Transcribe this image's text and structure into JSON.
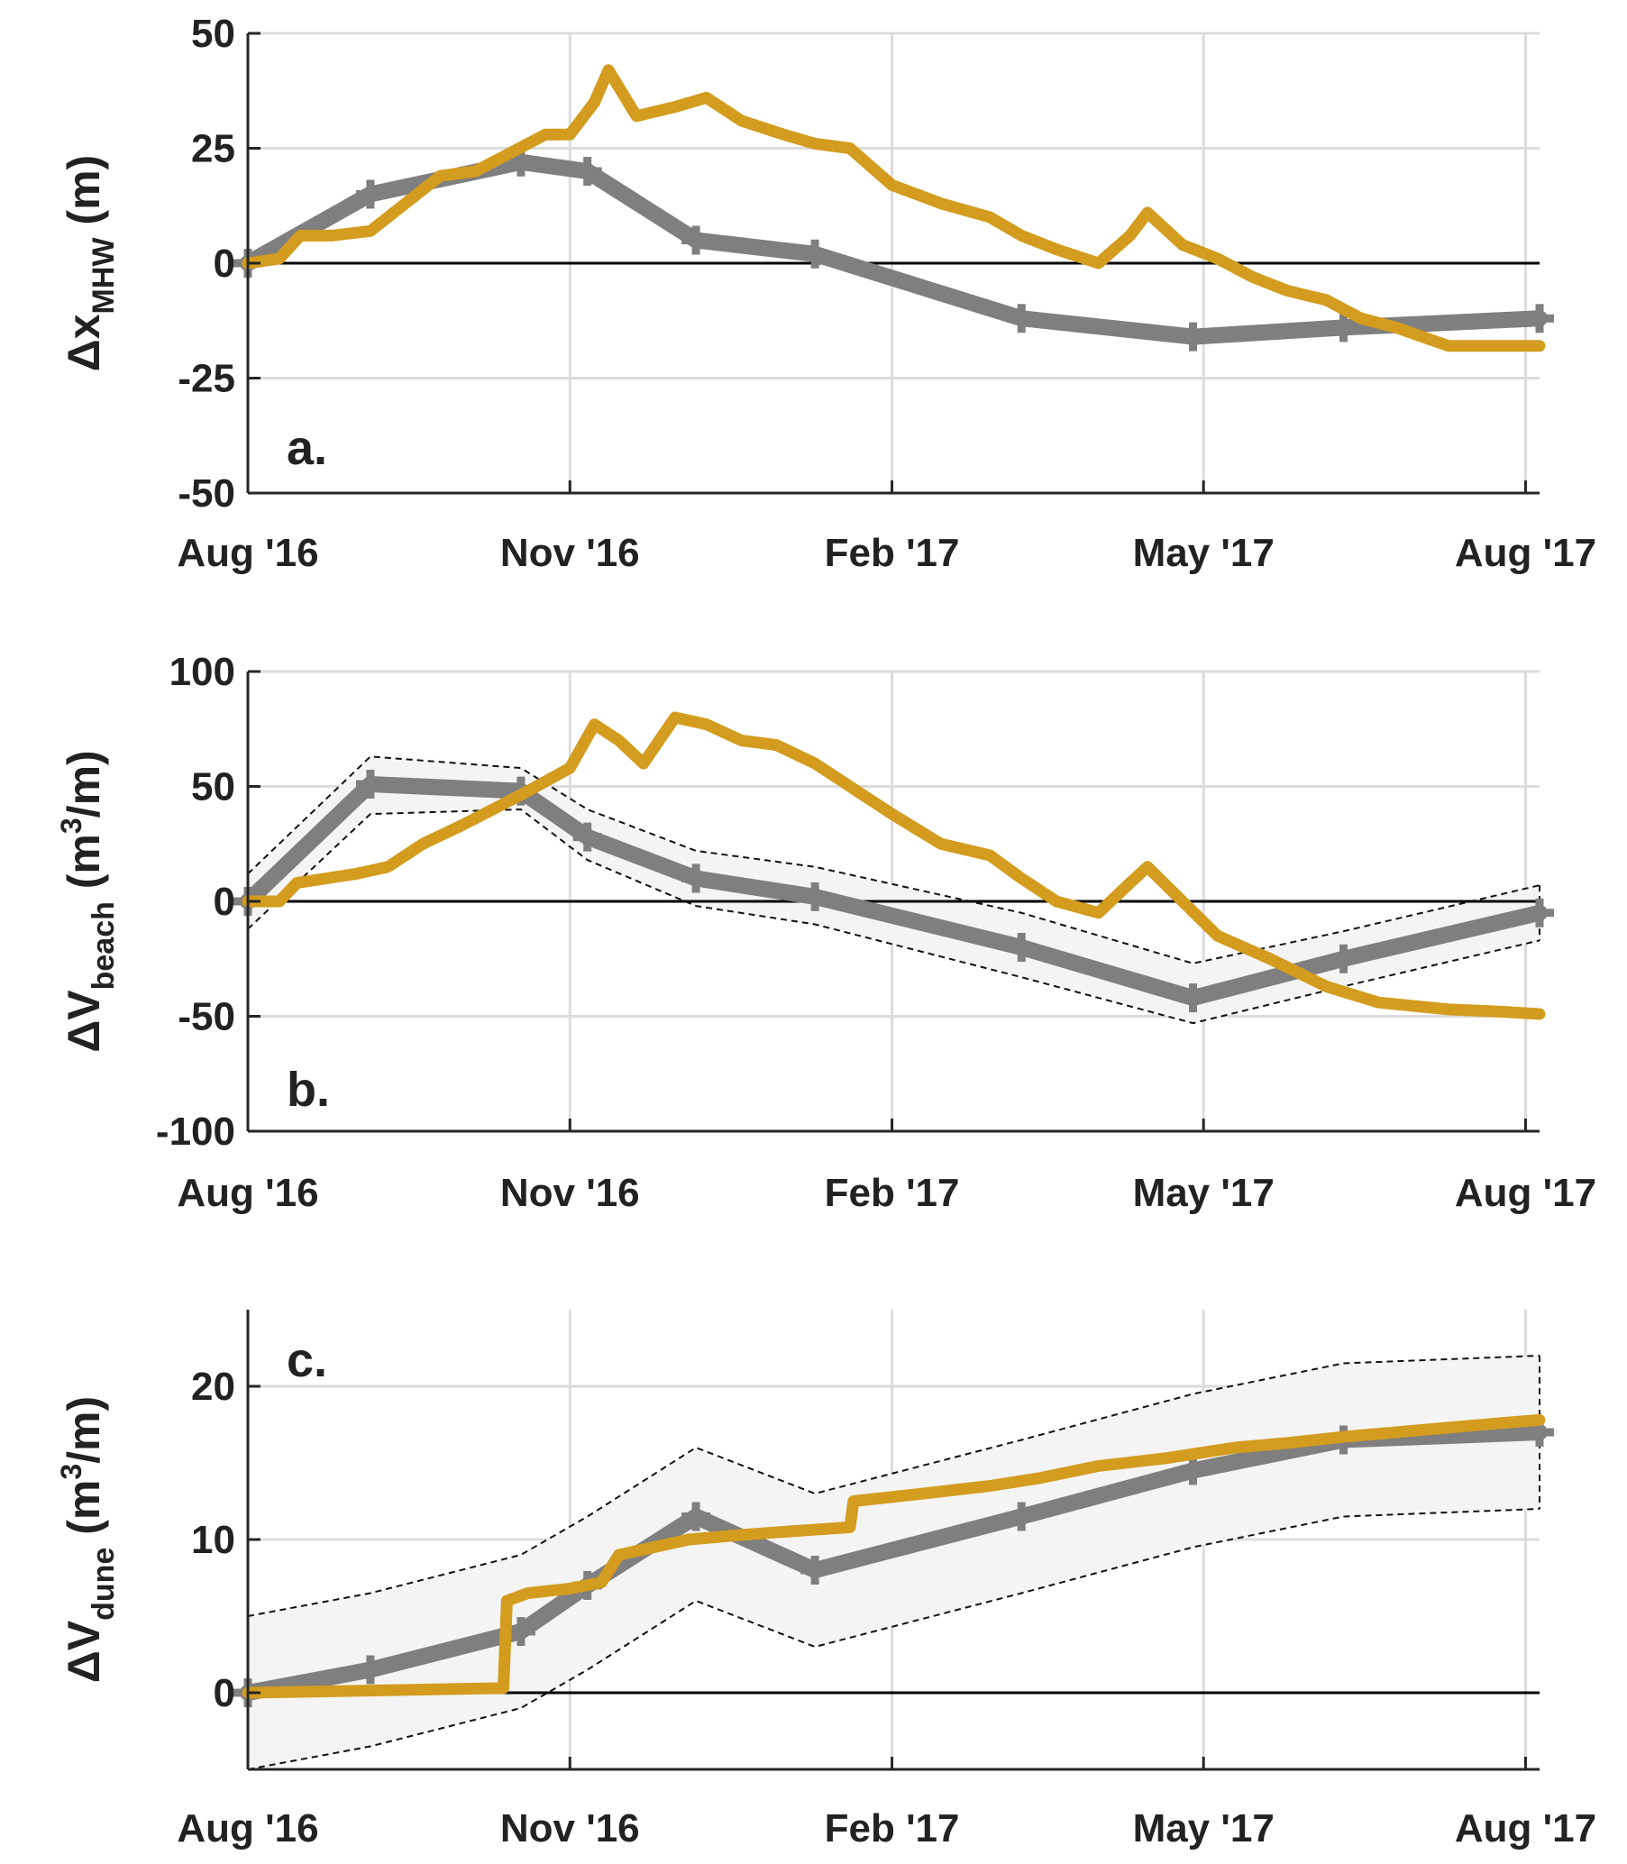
{
  "colors": {
    "survey": "#7f7f7f",
    "model": "#d39c1e",
    "grid": "#dcdcdc",
    "zero_line": "#000000",
    "band_fill": "#f4f4f4",
    "band_edge": "#111111"
  },
  "chart_data": [
    {
      "type": "line",
      "panel_label": "a.",
      "ylabel": {
        "prefix": "Δx",
        "sub": "MHW",
        "suffix": " (m)"
      },
      "xlim": [
        "2016-08-01",
        "2017-08-05"
      ],
      "ylim": [
        -50,
        50
      ],
      "yticks": [
        50,
        25,
        0,
        -25,
        -50
      ],
      "xticks": [
        {
          "date": "2016-08-01",
          "label": "Aug '16"
        },
        {
          "date": "2016-11-01",
          "label": "Nov '16"
        },
        {
          "date": "2017-02-01",
          "label": "Feb '17"
        },
        {
          "date": "2017-05-01",
          "label": "May '17"
        },
        {
          "date": "2017-08-01",
          "label": "Aug '17"
        }
      ],
      "grid": true,
      "zero_line": true,
      "series": [
        {
          "role": "survey",
          "marker": "plus",
          "x": [
            "2016-08-01",
            "2016-09-05",
            "2016-10-18",
            "2016-11-06",
            "2016-12-07",
            "2017-01-10",
            "2017-03-10",
            "2017-04-28",
            "2017-06-10",
            "2017-08-05"
          ],
          "y": [
            0,
            15,
            22,
            20,
            5,
            2,
            -12,
            -16,
            -14,
            -12
          ]
        },
        {
          "role": "model",
          "x": [
            "2016-08-01",
            "2016-08-10",
            "2016-08-16",
            "2016-08-25",
            "2016-09-05",
            "2016-09-15",
            "2016-09-25",
            "2016-10-05",
            "2016-10-15",
            "2016-10-25",
            "2016-11-01",
            "2016-11-08",
            "2016-11-12",
            "2016-11-20",
            "2016-12-01",
            "2016-12-10",
            "2016-12-20",
            "2017-01-01",
            "2017-01-10",
            "2017-01-20",
            "2017-02-01",
            "2017-02-15",
            "2017-03-01",
            "2017-03-10",
            "2017-03-20",
            "2017-04-01",
            "2017-04-10",
            "2017-04-15",
            "2017-04-25",
            "2017-05-05",
            "2017-05-15",
            "2017-05-25",
            "2017-06-05",
            "2017-06-15",
            "2017-06-25",
            "2017-07-10",
            "2017-07-25",
            "2017-08-05"
          ],
          "y": [
            0,
            1,
            6,
            6,
            7,
            13,
            19,
            20,
            24,
            28,
            28,
            35,
            42,
            32,
            34,
            36,
            31,
            28,
            26,
            25,
            17,
            13,
            10,
            6,
            3,
            0,
            6,
            11,
            4,
            1,
            -3,
            -6,
            -8,
            -12,
            -14,
            -18,
            -18,
            -18
          ]
        }
      ]
    },
    {
      "type": "line",
      "panel_label": "b.",
      "ylabel": {
        "prefix": "ΔV",
        "sub": "beach",
        "suffix": " (m",
        "sup": "3",
        "suffix2": "/m)"
      },
      "xlim": [
        "2016-08-01",
        "2017-08-05"
      ],
      "ylim": [
        -100,
        100
      ],
      "yticks": [
        100,
        50,
        0,
        -50,
        -100
      ],
      "xticks": [
        {
          "date": "2016-08-01",
          "label": "Aug '16"
        },
        {
          "date": "2016-11-01",
          "label": "Nov '16"
        },
        {
          "date": "2017-02-01",
          "label": "Feb '17"
        },
        {
          "date": "2017-05-01",
          "label": "May '17"
        },
        {
          "date": "2017-08-01",
          "label": "Aug '17"
        }
      ],
      "grid": true,
      "zero_line": true,
      "band": {
        "x": [
          "2016-08-01",
          "2016-09-05",
          "2016-10-18",
          "2016-11-06",
          "2016-12-07",
          "2017-01-10",
          "2017-03-10",
          "2017-04-28",
          "2017-06-10",
          "2017-08-05"
        ],
        "upper": [
          12,
          63,
          58,
          40,
          22,
          15,
          -5,
          -27,
          -13,
          7
        ],
        "lower": [
          -12,
          38,
          40,
          18,
          -2,
          -10,
          -33,
          -53,
          -37,
          -17
        ]
      },
      "series": [
        {
          "role": "survey",
          "marker": "plus",
          "x": [
            "2016-08-01",
            "2016-09-05",
            "2016-10-18",
            "2016-11-06",
            "2016-12-07",
            "2017-01-10",
            "2017-03-10",
            "2017-04-28",
            "2017-06-10",
            "2017-08-05"
          ],
          "y": [
            0,
            51,
            48,
            28,
            10,
            2,
            -20,
            -42,
            -25,
            -5
          ]
        },
        {
          "role": "model",
          "x": [
            "2016-08-01",
            "2016-08-10",
            "2016-08-15",
            "2016-09-01",
            "2016-09-10",
            "2016-09-20",
            "2016-10-01",
            "2016-10-10",
            "2016-10-20",
            "2016-11-01",
            "2016-11-08",
            "2016-11-15",
            "2016-11-22",
            "2016-12-01",
            "2016-12-10",
            "2016-12-20",
            "2016-12-30",
            "2017-01-10",
            "2017-01-20",
            "2017-02-01",
            "2017-02-15",
            "2017-03-01",
            "2017-03-10",
            "2017-03-20",
            "2017-04-01",
            "2017-04-10",
            "2017-04-15",
            "2017-04-25",
            "2017-05-05",
            "2017-05-20",
            "2017-06-05",
            "2017-06-20",
            "2017-07-10",
            "2017-07-25",
            "2017-08-05"
          ],
          "y": [
            0,
            0,
            8,
            12,
            15,
            25,
            33,
            40,
            48,
            58,
            77,
            70,
            60,
            80,
            77,
            70,
            68,
            60,
            50,
            38,
            25,
            20,
            10,
            0,
            -5,
            8,
            15,
            0,
            -15,
            -25,
            -37,
            -44,
            -47,
            -48,
            -49
          ]
        }
      ]
    },
    {
      "type": "line",
      "panel_label": "c.",
      "ylabel": {
        "prefix": "ΔV",
        "sub": "dune",
        "suffix": " (m",
        "sup": "3",
        "suffix2": "/m)"
      },
      "xlim": [
        "2016-08-01",
        "2017-08-05"
      ],
      "ylim": [
        -5,
        25
      ],
      "yticks": [
        20,
        10,
        0
      ],
      "xticks": [
        {
          "date": "2016-08-01",
          "label": "Aug '16"
        },
        {
          "date": "2016-11-01",
          "label": "Nov '16"
        },
        {
          "date": "2017-02-01",
          "label": "Feb '17"
        },
        {
          "date": "2017-05-01",
          "label": "May '17"
        },
        {
          "date": "2017-08-01",
          "label": "Aug '17"
        }
      ],
      "grid": true,
      "zero_line": true,
      "band": {
        "x": [
          "2016-08-01",
          "2016-09-05",
          "2016-10-18",
          "2016-11-06",
          "2016-12-07",
          "2017-01-10",
          "2017-03-10",
          "2017-04-28",
          "2017-06-10",
          "2017-08-05"
        ],
        "upper": [
          5,
          6.5,
          9,
          11.5,
          16,
          13,
          16.5,
          19.5,
          21.5,
          22
        ],
        "lower": [
          -5,
          -3.5,
          -1,
          1.5,
          6,
          3,
          6.5,
          9.5,
          11.5,
          12
        ]
      },
      "series": [
        {
          "role": "survey",
          "marker": "plus",
          "x": [
            "2016-08-01",
            "2016-09-05",
            "2016-10-18",
            "2016-11-06",
            "2016-12-07",
            "2017-01-10",
            "2017-03-10",
            "2017-04-28",
            "2017-06-10",
            "2017-08-05"
          ],
          "y": [
            0,
            1.5,
            4,
            7,
            11.5,
            8,
            11.5,
            14.5,
            16.5,
            17
          ]
        },
        {
          "role": "model",
          "x": [
            "2016-08-01",
            "2016-10-13",
            "2016-10-14",
            "2016-10-20",
            "2016-11-01",
            "2016-11-10",
            "2016-11-15",
            "2016-11-25",
            "2016-12-05",
            "2016-12-20",
            "2017-01-01",
            "2017-01-20",
            "2017-01-21",
            "2017-02-10",
            "2017-03-01",
            "2017-03-15",
            "2017-04-01",
            "2017-04-20",
            "2017-05-10",
            "2017-05-25",
            "2017-06-10",
            "2017-06-25",
            "2017-07-10",
            "2017-07-25",
            "2017-08-05"
          ],
          "y": [
            0,
            0.3,
            6,
            6.5,
            6.8,
            7.2,
            9,
            9.5,
            10,
            10.3,
            10.5,
            10.8,
            12.5,
            13,
            13.5,
            14,
            14.8,
            15.3,
            16,
            16.3,
            16.7,
            17,
            17.3,
            17.6,
            17.8
          ]
        }
      ]
    }
  ]
}
